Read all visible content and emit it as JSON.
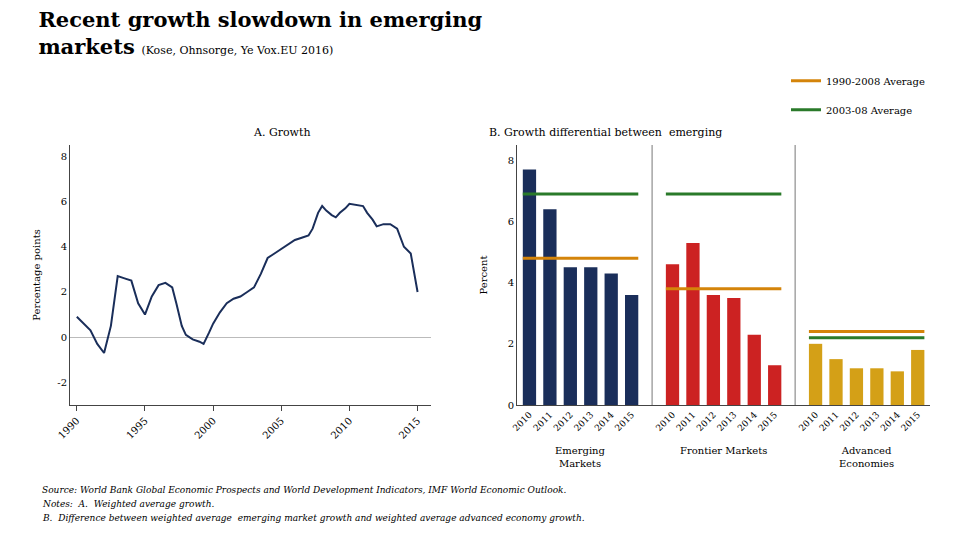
{
  "title": "Recent growth slowdown in emerging\nmarkets",
  "subtitle": "(Kose, Ohnsorge, Ye Vox.EU 2016)",
  "annotations": [
    "Source: World Bank Global Economic Prospects and World Development Indicators, IMF World Economic Outlook.",
    "Notes:  A.  Weighted average growth.",
    "B.  Difference between weighted average  emerging market growth and weighted average advanced economy growth."
  ],
  "chart_data": [
    {
      "type": "line",
      "title": "A. Growth",
      "ylabel": "Percentage points",
      "x": [
        1990,
        1991,
        1991.5,
        1992,
        1992.5,
        1993,
        1993.5,
        1994,
        1994.5,
        1995,
        1995.5,
        1996,
        1996.5,
        1997,
        1997.3,
        1997.7,
        1998,
        1998.5,
        1999,
        1999.3,
        1999.7,
        2000,
        2000.5,
        2001,
        2001.5,
        2002,
        2002.5,
        2003,
        2003.5,
        2004,
        2004.5,
        2005,
        2005.5,
        2006,
        2006.5,
        2007,
        2007.3,
        2007.7,
        2008,
        2008.3,
        2008.7,
        2009,
        2009.3,
        2009.7,
        2010,
        2010.5,
        2011,
        2011.3,
        2011.7,
        2012,
        2012.5,
        2013,
        2013.5,
        2014,
        2014.5,
        2015
      ],
      "values": [
        0.9,
        0.3,
        -0.3,
        -0.7,
        0.5,
        2.7,
        2.6,
        2.5,
        1.5,
        1.0,
        1.8,
        2.3,
        2.4,
        2.2,
        1.5,
        0.5,
        0.1,
        -0.1,
        -0.2,
        -0.3,
        0.2,
        0.6,
        1.1,
        1.5,
        1.7,
        1.8,
        2.0,
        2.2,
        2.8,
        3.5,
        3.7,
        3.9,
        4.1,
        4.3,
        4.4,
        4.5,
        4.8,
        5.5,
        5.8,
        5.6,
        5.4,
        5.3,
        5.5,
        5.7,
        5.9,
        5.85,
        5.8,
        5.5,
        5.2,
        4.9,
        5.0,
        5.0,
        4.8,
        4.0,
        3.7,
        2.0
      ],
      "color": "#1a2e5a",
      "xlim": [
        1989.5,
        2016
      ],
      "xticks": [
        1990,
        1995,
        2000,
        2005,
        2010,
        2015
      ],
      "ylim": [
        -3,
        8.5
      ],
      "yticks": [
        -2,
        0,
        2,
        4,
        6,
        8
      ],
      "grid": false
    },
    {
      "type": "bar",
      "title": "B. Growth differential between  emerging",
      "ylabel": "Percent",
      "categories": [
        "2010",
        "2011",
        "2012",
        "2013",
        "2014",
        "2015",
        "2010",
        "2011",
        "2012",
        "2013",
        "2014",
        "2015",
        "2010",
        "2011",
        "2012",
        "2013",
        "2014",
        "2015"
      ],
      "groups": [
        "Emerging\nMarkets",
        "Frontier Markets",
        "Advanced\nEconomies"
      ],
      "values": [
        7.7,
        6.4,
        4.5,
        4.5,
        4.3,
        3.6,
        4.6,
        5.3,
        3.6,
        3.5,
        2.3,
        1.3,
        2.0,
        1.5,
        1.2,
        1.2,
        1.1,
        1.8
      ],
      "colors": [
        "#1a2e5a",
        "#1a2e5a",
        "#1a2e5a",
        "#1a2e5a",
        "#1a2e5a",
        "#1a2e5a",
        "#cc2222",
        "#cc2222",
        "#cc2222",
        "#cc2222",
        "#cc2222",
        "#cc2222",
        "#d4a017",
        "#d4a017",
        "#d4a017",
        "#d4a017",
        "#d4a017",
        "#d4a017"
      ],
      "averages": [
        {
          "name": "1990-2008 Average",
          "color": "#d4840a",
          "values": [
            4.8,
            3.8,
            2.4
          ]
        },
        {
          "name": "2003-08 Average",
          "color": "#2a7a2a",
          "values": [
            6.9,
            6.9,
            2.2
          ]
        }
      ],
      "ylim": [
        0,
        8.5
      ],
      "yticks": [
        0,
        2,
        4,
        6,
        8
      ],
      "grid": false,
      "legend": "upper right"
    }
  ]
}
